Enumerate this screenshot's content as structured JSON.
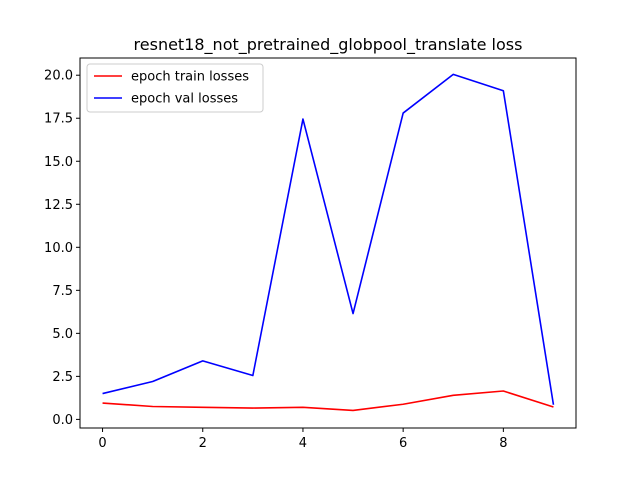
{
  "chart_data": {
    "type": "line",
    "title": "resnet18_not_pretrained_globpool_translate loss",
    "xlabel": "",
    "ylabel": "",
    "x": [
      0,
      1,
      2,
      3,
      4,
      5,
      6,
      7,
      8,
      9
    ],
    "xlim": [
      -0.45,
      9.45
    ],
    "ylim": [
      -0.5,
      21.0
    ],
    "xticks": [
      0,
      2,
      4,
      6,
      8
    ],
    "yticks": [
      0.0,
      2.5,
      5.0,
      7.5,
      10.0,
      12.5,
      15.0,
      17.5,
      20.0
    ],
    "xtick_labels": [
      "0",
      "2",
      "4",
      "6",
      "8"
    ],
    "ytick_labels": [
      "0.0",
      "2.5",
      "5.0",
      "7.5",
      "10.0",
      "12.5",
      "15.0",
      "17.5",
      "20.0"
    ],
    "grid": false,
    "legend_position": "top-left",
    "series": [
      {
        "name": "epoch train losses",
        "color": "#ff0000",
        "values": [
          0.95,
          0.75,
          0.7,
          0.66,
          0.7,
          0.52,
          0.88,
          1.4,
          1.65,
          0.72
        ]
      },
      {
        "name": "epoch val losses",
        "color": "#0000ff",
        "values": [
          1.5,
          2.2,
          3.4,
          2.55,
          17.45,
          6.15,
          17.8,
          20.05,
          19.1,
          0.85
        ]
      }
    ]
  }
}
